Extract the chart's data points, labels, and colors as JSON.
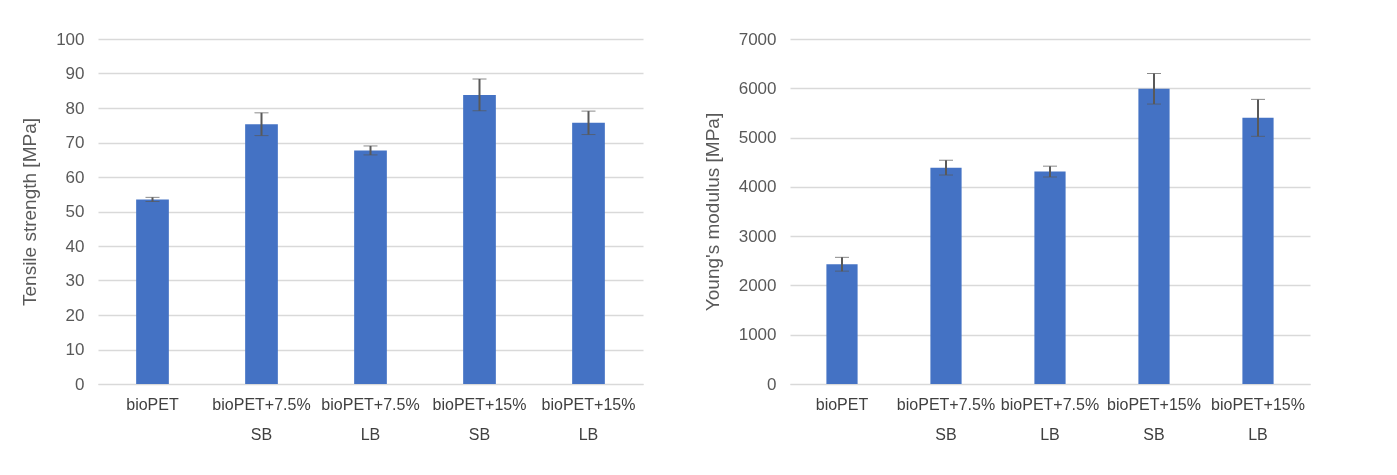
{
  "chart_data": [
    {
      "type": "bar",
      "categories": [
        "bioPET",
        "bioPET+7.5% SB",
        "bioPET+7.5% LB",
        "bioPET+15% SB",
        "bioPET+15% LB"
      ],
      "values": [
        53.5,
        75.3,
        67.7,
        83.8,
        75.7
      ],
      "errors": [
        0.6,
        3.3,
        1.3,
        4.6,
        3.4
      ],
      "color": "#4472c4",
      "ylabel": "Tensile strength [MPa]",
      "ylim": [
        0,
        100
      ],
      "yticks": [
        0,
        10,
        20,
        30,
        40,
        50,
        60,
        70,
        80,
        90,
        100
      ],
      "grid": "y"
    },
    {
      "type": "bar",
      "categories": [
        "bioPET",
        "bioPET+7.5% SB",
        "bioPET+7.5% LB",
        "bioPET+15% SB",
        "bioPET+15% LB"
      ],
      "values": [
        2430,
        4390,
        4310,
        5990,
        5400
      ],
      "errors": [
        140,
        150,
        110,
        310,
        375
      ],
      "color": "#4472c4",
      "ylabel": "Young's modulus [MPa]",
      "ylim": [
        0,
        7000
      ],
      "yticks": [
        0,
        1000,
        2000,
        3000,
        4000,
        5000,
        6000,
        7000
      ],
      "grid": "y"
    }
  ]
}
